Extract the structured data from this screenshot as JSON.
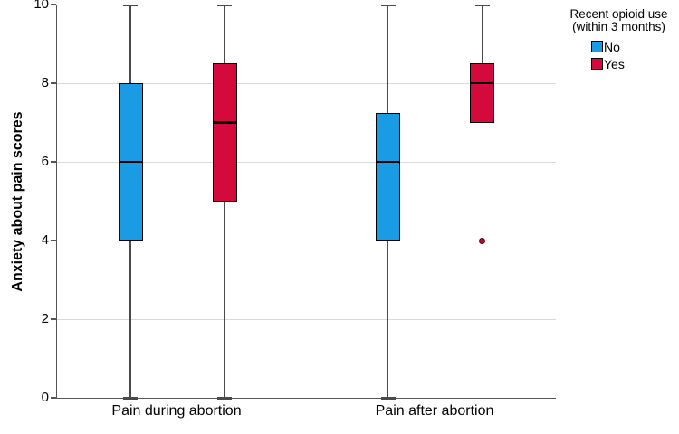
{
  "colors": {
    "series_no": "#199CE3",
    "series_yes": "#D50A3C",
    "outlier_fill": "#C00A32",
    "outlier_stroke": "#55000F",
    "grid": "#D9D9D9",
    "axis": "#555555",
    "whisker": "#4A4A4A",
    "box_border": "#000000",
    "text": "#000000"
  },
  "y_axis": {
    "title": "Anxiety about pain scores",
    "ticks": [
      0,
      2,
      4,
      6,
      8,
      10
    ],
    "min": 0,
    "max": 10
  },
  "x_axis": {
    "labels": [
      "Pain during abortion",
      "Pain after abortion"
    ]
  },
  "legend": {
    "title_line1": "Recent opioid use",
    "title_line2": "(within 3 months)",
    "items": [
      {
        "label": "No",
        "color_key": "series_no"
      },
      {
        "label": "Yes",
        "color_key": "series_yes"
      }
    ]
  },
  "chart_data": {
    "type": "boxplot",
    "title": "",
    "xlabel": "",
    "ylabel": "Anxiety about pain scores",
    "categories": [
      "Pain during abortion",
      "Pain after abortion"
    ],
    "y_range": [
      0,
      10
    ],
    "grid": true,
    "legend_position": "top-right",
    "legend_title": "Recent opioid use (within 3 months)",
    "series": [
      {
        "name": "No",
        "color": "#199CE3",
        "boxes": [
          {
            "category": "Pain during abortion",
            "whisker_low": 0,
            "q1": 4,
            "median": 6,
            "q3": 8,
            "whisker_high": 10,
            "outliers": []
          },
          {
            "category": "Pain after abortion",
            "whisker_low": 0,
            "q1": 4,
            "median": 6,
            "q3": 7.25,
            "whisker_high": 10,
            "outliers": []
          }
        ]
      },
      {
        "name": "Yes",
        "color": "#D50A3C",
        "boxes": [
          {
            "category": "Pain during abortion",
            "whisker_low": 0,
            "q1": 5,
            "median": 7,
            "q3": 8.5,
            "whisker_high": 10,
            "outliers": []
          },
          {
            "category": "Pain after abortion",
            "whisker_low": 7,
            "q1": 7,
            "median": 8,
            "q3": 8.5,
            "whisker_high": 10,
            "outliers": [
              4
            ]
          }
        ]
      }
    ]
  }
}
